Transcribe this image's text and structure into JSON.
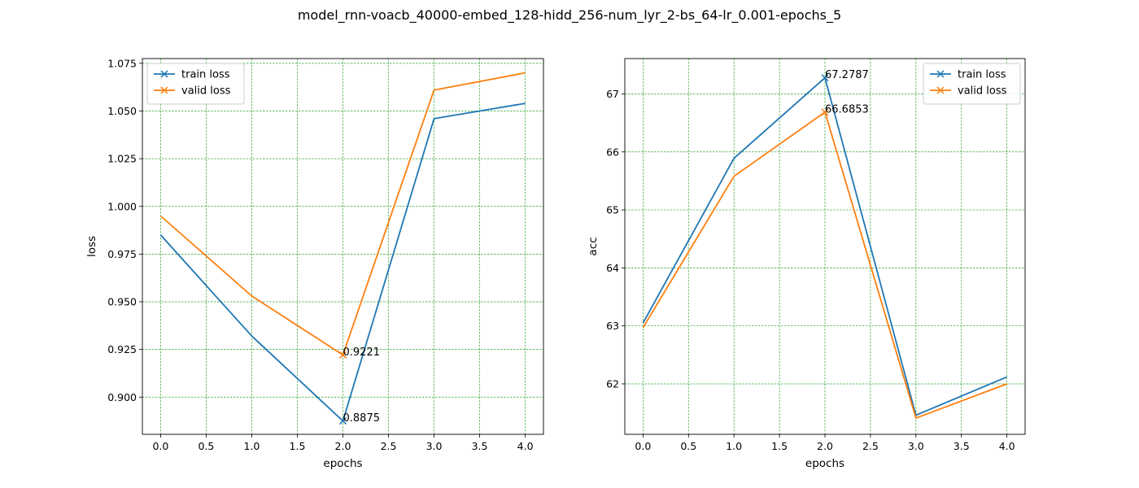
{
  "figure": {
    "title": "model_rnn-voacb_40000-embed_128-hidd_256-num_lyr_2-bs_64-lr_0.001-epochs_5"
  },
  "colors": {
    "train": "#1f77b4",
    "valid": "#ff7f0e",
    "grid": "#2ca02c"
  },
  "chart_data": [
    {
      "type": "line",
      "xlabel": "epochs",
      "ylabel": "loss",
      "grid": true,
      "legend_position": "upper-left",
      "xlim": [
        -0.2,
        4.2
      ],
      "ylim": [
        0.8805,
        1.0775
      ],
      "x_ticks": [
        "0.0",
        "0.5",
        "1.0",
        "1.5",
        "2.0",
        "2.5",
        "3.0",
        "3.5",
        "4.0"
      ],
      "y_ticks": [
        "0.900",
        "0.925",
        "0.950",
        "0.975",
        "1.000",
        "1.025",
        "1.050",
        "1.075"
      ],
      "x": [
        0,
        1,
        2,
        3,
        4
      ],
      "series": [
        {
          "name": "train loss",
          "color": "#1f77b4",
          "values": [
            0.985,
            0.932,
            0.8875,
            1.046,
            1.054
          ]
        },
        {
          "name": "valid loss",
          "color": "#ff7f0e",
          "values": [
            0.995,
            0.953,
            0.9221,
            1.061,
            1.07
          ]
        }
      ],
      "annotations": [
        {
          "series": "train loss",
          "x": 2,
          "y": 0.8875,
          "text": "0.8875"
        },
        {
          "series": "valid loss",
          "x": 2,
          "y": 0.9221,
          "text": "0.9221"
        }
      ]
    },
    {
      "type": "line",
      "xlabel": "epochs",
      "ylabel": "acc",
      "grid": true,
      "legend_position": "upper-right",
      "xlim": [
        -0.2,
        4.2
      ],
      "ylim": [
        61.13,
        67.61
      ],
      "x_ticks": [
        "0.0",
        "0.5",
        "1.0",
        "1.5",
        "2.0",
        "2.5",
        "3.0",
        "3.5",
        "4.0"
      ],
      "y_ticks": [
        "62",
        "63",
        "64",
        "65",
        "66",
        "67"
      ],
      "x": [
        0,
        1,
        2,
        3,
        4
      ],
      "series": [
        {
          "name": "train loss",
          "color": "#1f77b4",
          "values": [
            63.05,
            65.89,
            67.2787,
            61.46,
            62.12
          ]
        },
        {
          "name": "valid loss",
          "color": "#ff7f0e",
          "values": [
            62.97,
            65.58,
            66.6853,
            61.41,
            62.0
          ]
        }
      ],
      "annotations": [
        {
          "series": "train loss",
          "x": 2,
          "y": 67.2787,
          "text": "67.2787"
        },
        {
          "series": "valid loss",
          "x": 2,
          "y": 66.6853,
          "text": "66.6853"
        }
      ]
    }
  ]
}
